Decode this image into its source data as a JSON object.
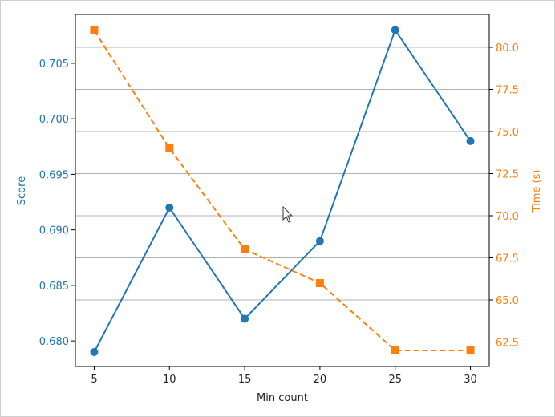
{
  "chart_data": {
    "type": "line",
    "x": [
      5,
      10,
      15,
      20,
      25,
      30
    ],
    "xlabel": "Min count",
    "xticks": [
      "5",
      "10",
      "15",
      "20",
      "25",
      "30"
    ],
    "xlim": [
      3.75,
      31.25
    ],
    "grid": "horizontal lines at right-axis ticks",
    "left_axis": {
      "label": "Score",
      "color": "#1f77b4",
      "ylim": [
        0.6777,
        0.7094
      ],
      "ticks": [
        0.68,
        0.685,
        0.69,
        0.695,
        0.7,
        0.705
      ],
      "tick_labels": [
        "0.680",
        "0.685",
        "0.690",
        "0.695",
        "0.700",
        "0.705"
      ]
    },
    "right_axis": {
      "label": "Time (s)",
      "color": "#ff7f0e",
      "ylim": [
        61.05,
        81.95
      ],
      "ticks": [
        62.5,
        65.0,
        67.5,
        70.0,
        72.5,
        75.0,
        77.5,
        80.0
      ],
      "tick_labels": [
        "62.5",
        "65.0",
        "67.5",
        "70.0",
        "72.5",
        "75.0",
        "77.5",
        "80.0"
      ]
    },
    "series": [
      {
        "axis": "left",
        "color": "#1f77b4",
        "marker": "circle",
        "linestyle": "solid",
        "values": [
          0.679,
          0.692,
          0.682,
          0.689,
          0.708,
          0.698
        ]
      },
      {
        "axis": "right",
        "color": "#ff7f0e",
        "marker": "square",
        "linestyle": "dashed",
        "values": [
          81.0,
          74.0,
          68.0,
          66.0,
          62.0,
          62.0
        ]
      }
    ]
  }
}
